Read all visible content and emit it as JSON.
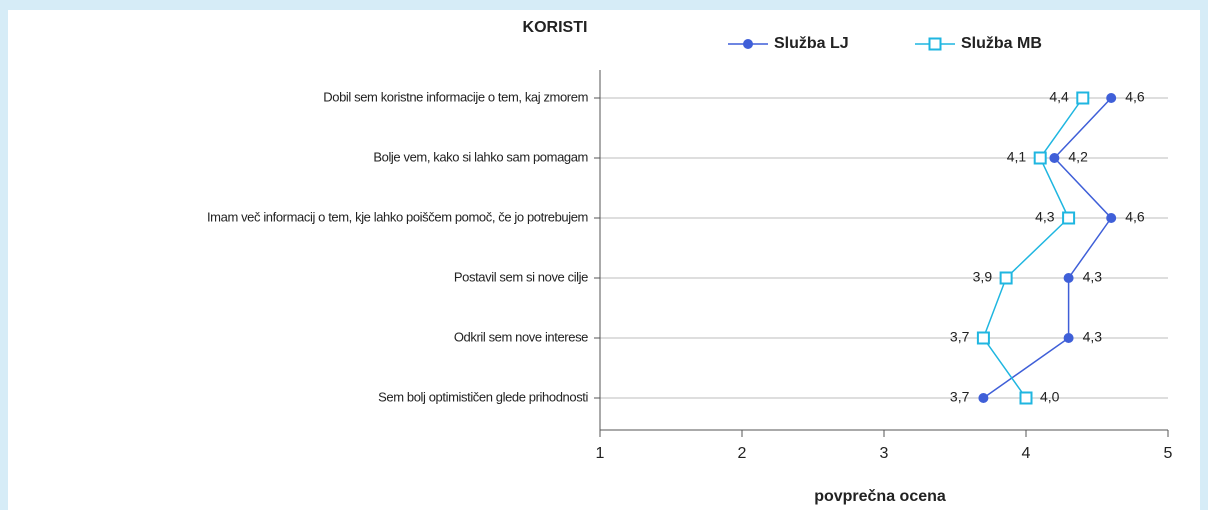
{
  "chart_data": {
    "type": "line",
    "orientation": "horizontal",
    "title": "KORISTI",
    "xlabel": "povprečna ocena",
    "categories": [
      "Dobil sem koristne informacije o tem, kaj zmorem",
      "Bolje vem, kako si lahko sam pomagam",
      "Imam več informacij o tem, kje lahko poiščem pomoč, če jo potrebujem",
      "Postavil sem si nove cilje",
      "Odkril sem nove interese",
      "Sem bolj optimističen glede prihodnosti"
    ],
    "series": [
      {
        "name": "Služba LJ",
        "color": "#3f5fd8",
        "marker": "circle",
        "values": [
          4.6,
          4.2,
          4.6,
          4.3,
          4.3,
          3.7
        ],
        "value_labels": [
          "4,6",
          "4,2",
          "4,6",
          "4,3",
          "4,3",
          "3,7"
        ]
      },
      {
        "name": "Služba MB",
        "color": "#1fb6e0",
        "marker": "square",
        "values": [
          4.4,
          4.1,
          4.3,
          3.86,
          3.7,
          4.0
        ],
        "value_labels": [
          "4,4",
          "4,1",
          "4,3",
          "3,9",
          "3,7",
          "4,0"
        ]
      }
    ],
    "xlim": [
      1,
      5
    ],
    "xticks": [
      1,
      2,
      3,
      4,
      5
    ],
    "grid": true,
    "legend": "top"
  }
}
